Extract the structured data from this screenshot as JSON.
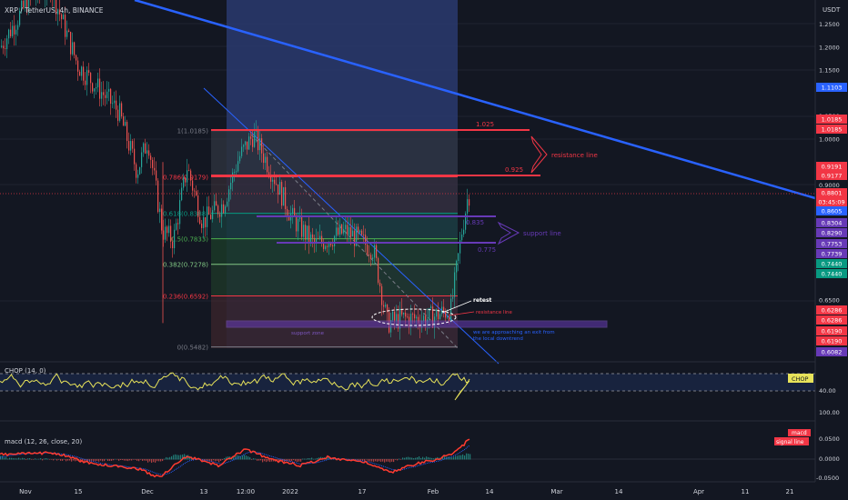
{
  "header": {
    "title": "XRP / TetherUS, 4h, BINANCE"
  },
  "price_axis": {
    "currency": "USDT",
    "ticks": [
      "1.2500",
      "1.2000",
      "1.1500",
      "1.0500",
      "1.0000",
      "0.9000",
      "0.6500"
    ],
    "tags": [
      {
        "text": "1.1103",
        "color": "#2962ff"
      },
      {
        "text": "1.0185",
        "color": "#f23645"
      },
      {
        "text": "1.0185",
        "color": "#f23645"
      },
      {
        "text": "0.9191",
        "color": "#f23645"
      },
      {
        "text": "0.9177",
        "color": "#f23645"
      },
      {
        "text": "0.8801",
        "color": "#f23645"
      },
      {
        "text": "03:45:09",
        "color": "#f23645"
      },
      {
        "text": "0.8605",
        "color": "#2962ff"
      },
      {
        "text": "0.8304",
        "color": "#673ab7"
      },
      {
        "text": "0.8290",
        "color": "#673ab7"
      },
      {
        "text": "0.7753",
        "color": "#673ab7"
      },
      {
        "text": "0.7739",
        "color": "#673ab7"
      },
      {
        "text": "0.7440",
        "color": "#089981"
      },
      {
        "text": "0.7440",
        "color": "#089981"
      },
      {
        "text": "0.6286",
        "color": "#f23645"
      },
      {
        "text": "0.6286",
        "color": "#f23645"
      },
      {
        "text": "0.6190",
        "color": "#f23645"
      },
      {
        "text": "0.6190",
        "color": "#f23645"
      },
      {
        "text": "0.6082",
        "color": "#673ab7"
      }
    ]
  },
  "time_axis": {
    "labels": [
      "Nov",
      "15",
      "Dec",
      "13",
      "12:00",
      "2022",
      "17",
      "Feb",
      "14",
      "Mar",
      "14",
      "Apr",
      "11",
      "21"
    ]
  },
  "fib": {
    "levels": [
      {
        "label": "1(1.0185)",
        "value": 1.0185,
        "color": "#787b86"
      },
      {
        "label": "0.786(0.9179)",
        "value": 0.9179,
        "color": "#f23645"
      },
      {
        "label": "0.618(0.8388)",
        "value": 0.8388,
        "color": "#089981"
      },
      {
        "label": "0.5(0.7833)",
        "value": 0.7833,
        "color": "#4caf50"
      },
      {
        "label": "0.382(0.7278)",
        "value": 0.7278,
        "color": "#81c784"
      },
      {
        "label": "0.236(0.6592)",
        "value": 0.6592,
        "color": "#f23645"
      },
      {
        "label": "0(0.5482)",
        "value": 0.5482,
        "color": "#787b86"
      }
    ]
  },
  "annotations": {
    "res_top": "1.025",
    "res_mid": "0.925",
    "resistance_line": "resistance line",
    "sup_top": "0.835",
    "sup_bottom": "0.775",
    "support_line": "support line",
    "retest": "retest",
    "resistance_line_small": "resistance line",
    "support_zone": "support zone",
    "exit_note_1": "we are approaching an exit from",
    "exit_note_2": "the local downtrend"
  },
  "chop": {
    "label": "CHOP (14, 0)",
    "tag": "CHOP",
    "ticks": [
      "40.00",
      "100.00"
    ]
  },
  "macd": {
    "label": "macd (12, 26, close, 20)",
    "tag_macd": "macd",
    "tag_signal": "signal line",
    "ticks": [
      "0.0500",
      "0.0000",
      "-0.0500"
    ]
  },
  "colors": {
    "background": "#131722",
    "candle_up": "#26a69a",
    "candle_down": "#ef5350",
    "trendline_long": "#2962ff",
    "fib_zone_top": "#2a3a6e",
    "macd_line": "#ff3b30",
    "signal_line": "#2962ff",
    "chop_line": "#e8e35a"
  },
  "chart_data": {
    "type": "candlestick",
    "title": "XRP / TetherUS, 4h, BINANCE",
    "xlabel": "",
    "ylabel": "USDT",
    "ylim": [
      0.5,
      1.3
    ],
    "last_price": 0.8801,
    "milestones": [
      {
        "x": "Nov",
        "y": 1.2
      },
      {
        "x": "Nov 10",
        "y": 1.33
      },
      {
        "x": "Nov 15",
        "y": 1.16
      },
      {
        "x": "Dec 1",
        "y": 1.0
      },
      {
        "x": "Dec 4",
        "y": 0.78
      },
      {
        "x": "Dec 13",
        "y": 0.8
      },
      {
        "x": "Dec 20",
        "y": 0.96
      },
      {
        "x": "Dec 28",
        "y": 0.9
      },
      {
        "x": "2022",
        "y": 0.8
      },
      {
        "x": "Jan 10",
        "y": 0.78
      },
      {
        "x": "Jan 17",
        "y": 0.72
      },
      {
        "x": "Jan 22",
        "y": 0.59
      },
      {
        "x": "Feb 1",
        "y": 0.61
      },
      {
        "x": "Feb 5",
        "y": 0.63
      },
      {
        "x": "Feb 9",
        "y": 0.88
      }
    ]
  }
}
